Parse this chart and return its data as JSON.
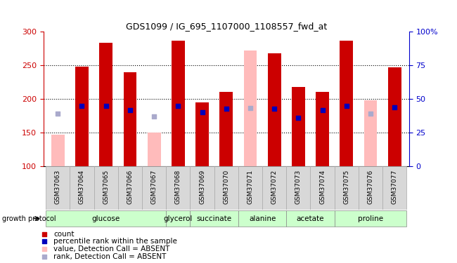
{
  "title": "GDS1099 / IG_695_1107000_1108557_fwd_at",
  "samples": [
    "GSM37063",
    "GSM37064",
    "GSM37065",
    "GSM37066",
    "GSM37067",
    "GSM37068",
    "GSM37069",
    "GSM37070",
    "GSM37071",
    "GSM37072",
    "GSM37073",
    "GSM37074",
    "GSM37075",
    "GSM37076",
    "GSM37077"
  ],
  "red_values": [
    null,
    248,
    283,
    240,
    null,
    286,
    195,
    210,
    null,
    268,
    218,
    210,
    286,
    null,
    247
  ],
  "pink_values": [
    147,
    null,
    null,
    null,
    150,
    null,
    null,
    null,
    272,
    null,
    null,
    null,
    null,
    198,
    null
  ],
  "blue_values": [
    null,
    190,
    190,
    183,
    null,
    190,
    180,
    185,
    null,
    185,
    172,
    183,
    190,
    null,
    187
  ],
  "lavender_values": [
    178,
    null,
    null,
    null,
    174,
    null,
    null,
    null,
    186,
    null,
    null,
    null,
    null,
    178,
    null
  ],
  "groups": [
    {
      "label": "glucose",
      "start": 0,
      "end": 4,
      "color": "#ccffcc"
    },
    {
      "label": "glycerol",
      "start": 5,
      "end": 5,
      "color": "#ccffcc"
    },
    {
      "label": "succinate",
      "start": 6,
      "end": 7,
      "color": "#ccffcc"
    },
    {
      "label": "alanine",
      "start": 8,
      "end": 9,
      "color": "#ccffcc"
    },
    {
      "label": "acetate",
      "start": 10,
      "end": 11,
      "color": "#ccffcc"
    },
    {
      "label": "proline",
      "start": 12,
      "end": 14,
      "color": "#ccffcc"
    }
  ],
  "ylim_left": [
    100,
    300
  ],
  "ylim_right": [
    0,
    100
  ],
  "yticks_left": [
    100,
    150,
    200,
    250,
    300
  ],
  "yticks_right": [
    0,
    25,
    50,
    75,
    100
  ],
  "left_axis_color": "#cc0000",
  "right_axis_color": "#0000cc",
  "bar_width": 0.55,
  "red_color": "#cc0000",
  "pink_color": "#ffbbbb",
  "blue_color": "#0000bb",
  "lavender_color": "#aaaacc",
  "bg_color": "#ffffff",
  "grid_color": "#000000",
  "sample_box_color": "#d8d8d8",
  "legend_items": [
    {
      "color": "#cc0000",
      "label": "count"
    },
    {
      "color": "#0000bb",
      "label": "percentile rank within the sample"
    },
    {
      "color": "#ffbbbb",
      "label": "value, Detection Call = ABSENT"
    },
    {
      "color": "#aaaacc",
      "label": "rank, Detection Call = ABSENT"
    }
  ],
  "n_samples": 15
}
